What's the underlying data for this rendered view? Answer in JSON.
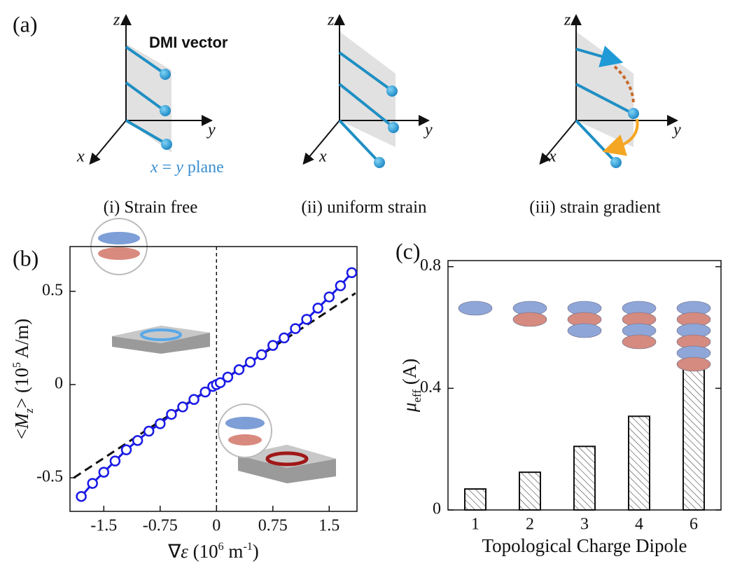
{
  "panel_a": {
    "label": "(a)",
    "dmi_label": "DMI vector",
    "plane_label": [
      "x",
      " = ",
      "y",
      " plane"
    ],
    "axes": [
      [
        "z",
        "y",
        "x"
      ],
      [
        "z",
        "y",
        "x"
      ],
      [
        "z",
        "y",
        "x"
      ]
    ],
    "captions": [
      "(i) Strain free",
      "(ii) uniform strain",
      "(iii) strain gradient"
    ]
  },
  "chart_data": [
    {
      "type": "line",
      "panel_label": "(b)",
      "xlabel": [
        "∇",
        "ε",
        " (10",
        "6",
        " m",
        "-1",
        ")"
      ],
      "ylabel": [
        "<",
        "M",
        "z",
        "> (10",
        "5",
        " A/m)"
      ],
      "x": [
        -1.8,
        -1.65,
        -1.5,
        -1.35,
        -1.2,
        -1.05,
        -0.9,
        -0.75,
        -0.6,
        -0.45,
        -0.3,
        -0.15,
        -0.05,
        0,
        0.05,
        0.15,
        0.3,
        0.45,
        0.6,
        0.75,
        0.9,
        1.05,
        1.2,
        1.35,
        1.5,
        1.65,
        1.8
      ],
      "series": [
        {
          "color": "#1a1ae6",
          "values": [
            -0.6,
            -0.53,
            -0.47,
            -0.41,
            -0.35,
            -0.3,
            -0.25,
            -0.21,
            -0.16,
            -0.12,
            -0.08,
            -0.04,
            -0.01,
            0,
            0.01,
            0.04,
            0.08,
            0.12,
            0.16,
            0.21,
            0.25,
            0.3,
            0.35,
            0.41,
            0.47,
            0.53,
            0.6
          ]
        }
      ],
      "reference_line": {
        "x": [
          -1.9,
          1.85
        ],
        "values": [
          -0.5,
          0.49
        ]
      },
      "vline": 0,
      "xlim": [
        -1.95,
        1.87
      ],
      "ylim": [
        -0.68,
        0.74
      ],
      "xticks": [
        -1.5,
        -0.75,
        0,
        0.75,
        1.5
      ],
      "yticks": [
        -0.5,
        0,
        0.5
      ]
    },
    {
      "type": "bar",
      "panel_label": "(c)",
      "xlabel": [
        "Topological Charge Dipole"
      ],
      "ylabel": [
        "μ",
        "eff",
        " (A)"
      ],
      "categories": [
        "1",
        "2",
        "3",
        "4",
        "6"
      ],
      "values": [
        0.069,
        0.124,
        0.209,
        0.308,
        0.464
      ],
      "color": "#ffffff",
      "ylim": [
        0,
        0.82
      ],
      "yticks": [
        0,
        0.4,
        0.8
      ]
    }
  ]
}
